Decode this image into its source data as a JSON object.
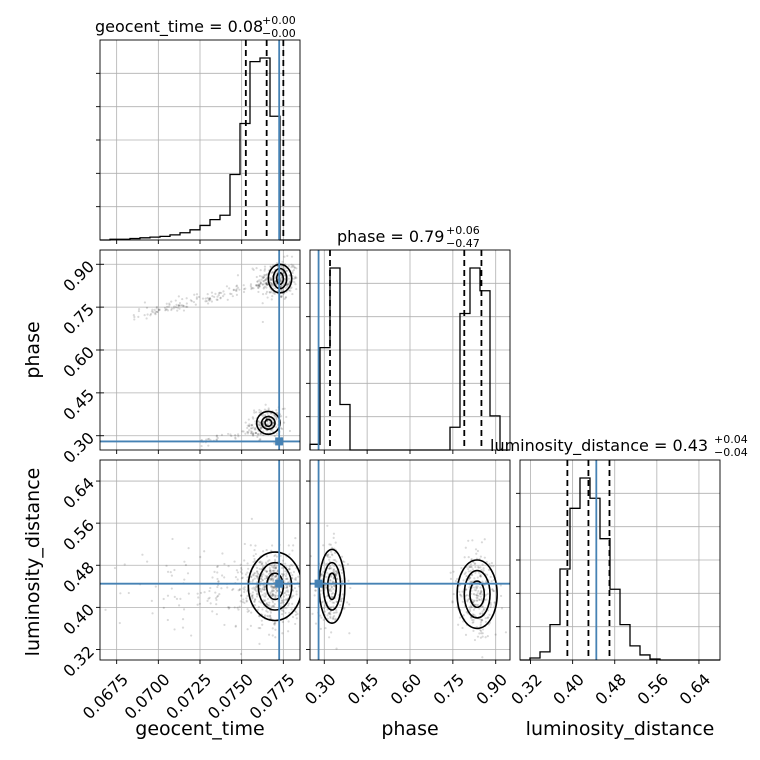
{
  "chart_data": {
    "type": "corner",
    "parameters": [
      {
        "name": "geocent_time",
        "range": [
          0.0665,
          0.0785
        ],
        "ticks": [
          0.0675,
          0.07,
          0.0725,
          0.075,
          0.0775
        ],
        "tick_labels": [
          "0.0675",
          "0.0700",
          "0.0725",
          "0.0750",
          "0.0775"
        ],
        "quantiles": [
          0.07525,
          0.0765,
          0.0775
        ],
        "truth": 0.07725,
        "title_main": "geocent_time = 0.08",
        "title_sup": "+0.00",
        "title_sub": "−0.00",
        "hist_edges": [
          0.0665,
          0.0671,
          0.0677,
          0.0683,
          0.0689,
          0.0695,
          0.0701,
          0.0707,
          0.0713,
          0.0719,
          0.0725,
          0.0731,
          0.0737,
          0.0743,
          0.0749,
          0.0755,
          0.0761,
          0.0767,
          0.0773,
          0.0779,
          0.0785
        ],
        "hist_counts": [
          0,
          1,
          1,
          2,
          3,
          4,
          5,
          7,
          10,
          14,
          20,
          28,
          34,
          90,
          160,
          245,
          250,
          170,
          0,
          0
        ]
      },
      {
        "name": "phase",
        "range": [
          0.25,
          0.95
        ],
        "ticks": [
          0.3,
          0.45,
          0.6,
          0.75,
          0.9
        ],
        "tick_labels": [
          "0.30",
          "0.45",
          "0.60",
          "0.75",
          "0.90"
        ],
        "quantiles": [
          0.32,
          0.79,
          0.85
        ],
        "truth": 0.28,
        "title_main": "phase = 0.79",
        "title_sup": "+0.06",
        "title_sub": "−0.47",
        "hist_edges": [
          0.25,
          0.285,
          0.32,
          0.355,
          0.39,
          0.425,
          0.46,
          0.495,
          0.53,
          0.565,
          0.6,
          0.635,
          0.67,
          0.705,
          0.74,
          0.775,
          0.81,
          0.845,
          0.88,
          0.915,
          0.95
        ],
        "hist_counts": [
          5,
          90,
          160,
          40,
          0,
          0,
          0,
          0,
          0,
          0,
          0,
          0,
          0,
          0,
          20,
          120,
          160,
          140,
          30,
          0
        ]
      },
      {
        "name": "luminosity_distance",
        "range": [
          0.3,
          0.68
        ],
        "ticks": [
          0.32,
          0.4,
          0.48,
          0.56,
          0.64
        ],
        "tick_labels": [
          "0.32",
          "0.40",
          "0.48",
          "0.56",
          "0.64"
        ],
        "quantiles": [
          0.39,
          0.43,
          0.47
        ],
        "truth": 0.445,
        "title_main": "luminosity_distance = 0.43",
        "title_sup": "+0.04",
        "title_sub": "−0.04",
        "hist_edges": [
          0.3,
          0.319,
          0.338,
          0.357,
          0.376,
          0.395,
          0.414,
          0.433,
          0.452,
          0.471,
          0.49,
          0.509,
          0.528,
          0.547,
          0.566,
          0.585,
          0.604,
          0.623,
          0.642,
          0.661,
          0.68
        ],
        "hist_counts": [
          0,
          2,
          8,
          35,
          90,
          150,
          180,
          160,
          120,
          70,
          35,
          14,
          5,
          1,
          0,
          0,
          0,
          0,
          0,
          0
        ]
      }
    ],
    "pairs": [
      {
        "x": "geocent_time",
        "y": "phase"
      },
      {
        "x": "geocent_time",
        "y": "luminosity_distance"
      },
      {
        "x": "phase",
        "y": "luminosity_distance"
      }
    ],
    "grid": true
  }
}
